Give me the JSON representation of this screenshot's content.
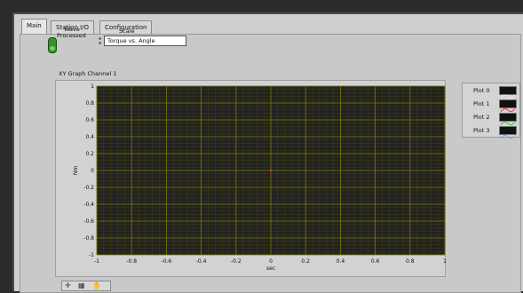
{
  "tabs": [
    {
      "label": "Main",
      "active": true
    },
    {
      "label": "Station I/O",
      "active": false
    },
    {
      "label": "Configuration",
      "active": false
    }
  ],
  "controls": {
    "wave_label": "Wave",
    "processed_label": "Processed",
    "scale_label": "Scale",
    "scale_value": "Torque vs. Angle"
  },
  "graph": {
    "title": "XY Graph Channel 1",
    "xlabel": "sec",
    "ylabel": "Nm",
    "x_ticks": [
      "-1",
      "-0.8",
      "-0.6",
      "-0.4",
      "-0.2",
      "0",
      "0.2",
      "0.4",
      "0.6",
      "0.8",
      "1"
    ],
    "y_ticks": [
      "1",
      "0.8",
      "0.6",
      "0.4",
      "0.2",
      "0",
      "-0.2",
      "-0.4",
      "-0.6",
      "-0.8",
      "-1"
    ],
    "plot_bg": "#222222",
    "major_grid_color": "#7a7a00",
    "minor_grid_color": "#3f3f12"
  },
  "legend": [
    {
      "label": "Plot 0",
      "color": "#e8e8e8"
    },
    {
      "label": "Plot 1",
      "color": "#ff3333"
    },
    {
      "label": "Plot 2",
      "color": "#33cc33"
    },
    {
      "label": "Plot 3",
      "color": "#6fa8ff"
    }
  ],
  "chart_data": {
    "type": "scatter",
    "title": "XY Graph Channel 1",
    "xlabel": "sec",
    "ylabel": "Nm",
    "xlim": [
      -1,
      1
    ],
    "ylim": [
      -1,
      1
    ],
    "grid": true,
    "legend_position": "right",
    "series": [
      {
        "name": "Plot 1",
        "points": [
          [
            0,
            0
          ]
        ]
      }
    ]
  },
  "palette": {
    "icons": [
      "crosshair-icon",
      "zoom-icon",
      "pan-hand-icon"
    ]
  }
}
